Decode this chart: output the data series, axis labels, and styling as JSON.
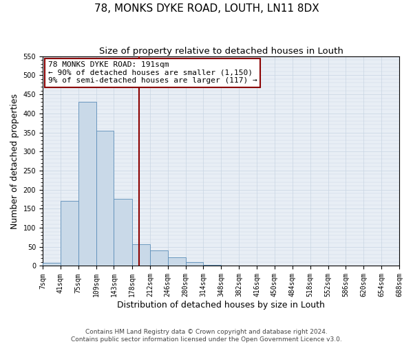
{
  "title": "78, MONKS DYKE ROAD, LOUTH, LN11 8DX",
  "subtitle": "Size of property relative to detached houses in Louth",
  "xlabel": "Distribution of detached houses by size in Louth",
  "ylabel": "Number of detached properties",
  "bin_edges": [
    7,
    41,
    75,
    109,
    143,
    178,
    212,
    246,
    280,
    314,
    348,
    382,
    416,
    450,
    484,
    518,
    552,
    586,
    620,
    654,
    688
  ],
  "bin_heights": [
    8,
    170,
    430,
    355,
    175,
    57,
    40,
    22,
    10,
    2,
    0,
    0,
    0,
    0,
    0,
    1,
    0,
    0,
    0,
    1
  ],
  "bar_facecolor": "#c9d9e8",
  "bar_edgecolor": "#5b8db8",
  "vline_x": 191,
  "vline_color": "#8b0000",
  "annotation_line1": "78 MONKS DYKE ROAD: 191sqm",
  "annotation_line2": "← 90% of detached houses are smaller (1,150)",
  "annotation_line3": "9% of semi-detached houses are larger (117) →",
  "annotation_box_edgecolor": "#8b0000",
  "annotation_box_facecolor": "#ffffff",
  "ylim": [
    0,
    550
  ],
  "yticks": [
    0,
    50,
    100,
    150,
    200,
    250,
    300,
    350,
    400,
    450,
    500,
    550
  ],
  "tick_labels": [
    "7sqm",
    "41sqm",
    "75sqm",
    "109sqm",
    "143sqm",
    "178sqm",
    "212sqm",
    "246sqm",
    "280sqm",
    "314sqm",
    "348sqm",
    "382sqm",
    "416sqm",
    "450sqm",
    "484sqm",
    "518sqm",
    "552sqm",
    "586sqm",
    "620sqm",
    "654sqm",
    "688sqm"
  ],
  "footnote": "Contains HM Land Registry data © Crown copyright and database right 2024.\nContains public sector information licensed under the Open Government Licence v3.0.",
  "background_color": "#ffffff",
  "plot_bg_color": "#e8eef5",
  "grid_color": "#c8d5e3",
  "title_fontsize": 11,
  "subtitle_fontsize": 9.5,
  "axis_label_fontsize": 9,
  "tick_fontsize": 7,
  "annotation_fontsize": 8,
  "footnote_fontsize": 6.5
}
